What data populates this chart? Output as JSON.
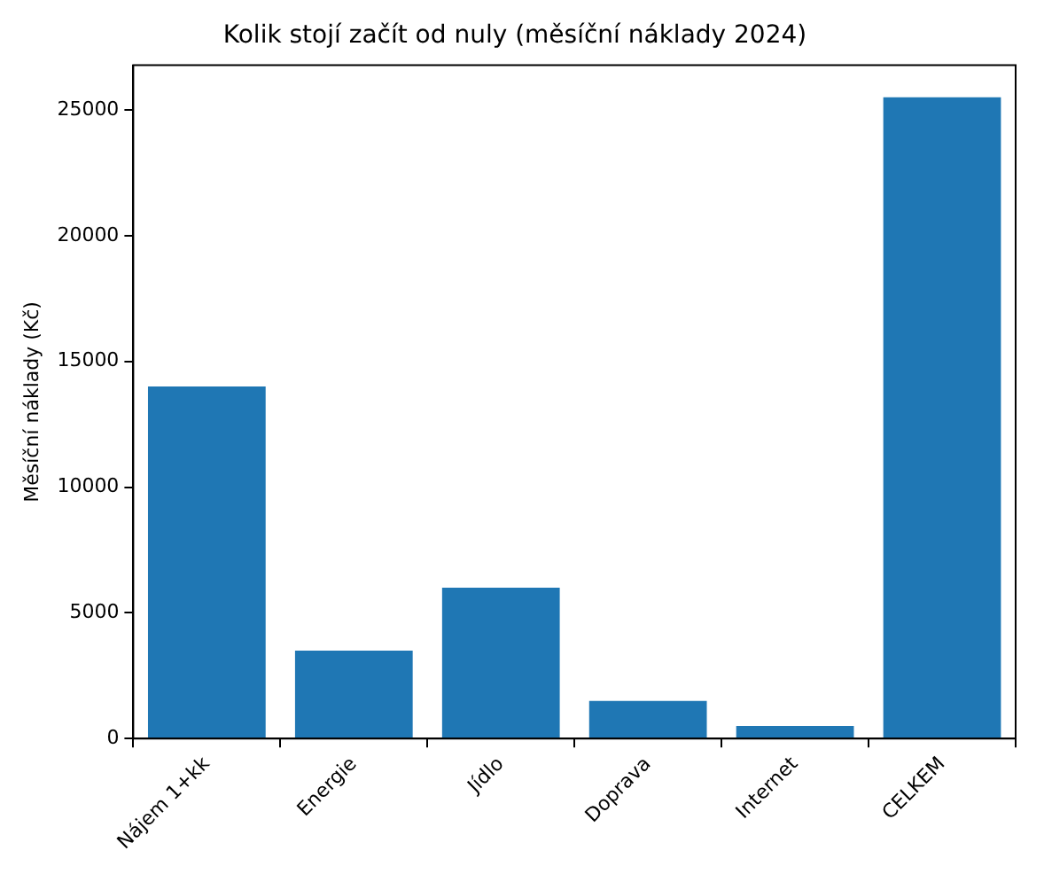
{
  "chart_data": {
    "type": "bar",
    "title": "Kolik stojí začít od nuly (měsíční náklady 2024)",
    "ylabel": "Měsíční náklady (Kč)",
    "categories": [
      "Nájem 1+kk",
      "Energie",
      "Jídlo",
      "Doprava",
      "Internet",
      "CELKEM"
    ],
    "values": [
      14000,
      3500,
      6000,
      1500,
      500,
      25500
    ],
    "color": "#1f77b4",
    "ylim": [
      0,
      26775
    ],
    "yticks": [
      0,
      5000,
      10000,
      15000,
      20000,
      25000
    ],
    "grid": false,
    "legend": false
  }
}
